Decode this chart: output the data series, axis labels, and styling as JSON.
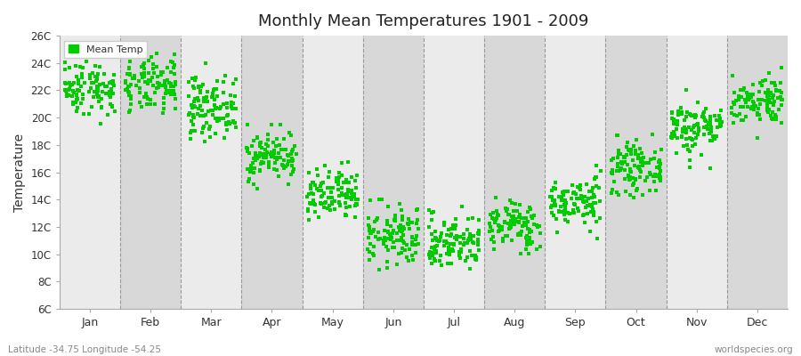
{
  "title": "Monthly Mean Temperatures 1901 - 2009",
  "ylabel": "Temperature",
  "xlabel": "",
  "ytick_labels": [
    "6C",
    "8C",
    "10C",
    "12C",
    "14C",
    "16C",
    "18C",
    "20C",
    "22C",
    "24C",
    "26C"
  ],
  "ytick_values": [
    6,
    8,
    10,
    12,
    14,
    16,
    18,
    20,
    22,
    24,
    26
  ],
  "ylim": [
    6,
    26
  ],
  "months": [
    "Jan",
    "Feb",
    "Mar",
    "Apr",
    "May",
    "Jun",
    "Jul",
    "Aug",
    "Sep",
    "Oct",
    "Nov",
    "Dec"
  ],
  "month_centers": [
    1,
    2,
    3,
    4,
    5,
    6,
    7,
    8,
    9,
    10,
    11,
    12
  ],
  "dot_color": "#00cc00",
  "dot_size": 5,
  "background_color": "#ffffff",
  "plot_bg_light": "#ebebeb",
  "plot_bg_dark": "#d8d8d8",
  "legend_label": "Mean Temp",
  "footer_left": "Latitude -34.75 Longitude -54.25",
  "footer_right": "worldspecies.org",
  "month_means": [
    22.2,
    22.3,
    20.8,
    17.2,
    14.2,
    11.3,
    10.9,
    12.1,
    13.8,
    16.3,
    19.3,
    21.3
  ],
  "month_stds": [
    1.0,
    1.0,
    1.1,
    0.9,
    1.0,
    1.1,
    1.0,
    0.9,
    0.9,
    0.9,
    1.0,
    0.9
  ],
  "month_ranges": [
    [
      19.5,
      25.5
    ],
    [
      19.5,
      25.5
    ],
    [
      17.5,
      24.0
    ],
    [
      14.5,
      19.5
    ],
    [
      10.0,
      17.0
    ],
    [
      7.5,
      14.0
    ],
    [
      7.5,
      14.0
    ],
    [
      9.0,
      15.0
    ],
    [
      10.0,
      16.5
    ],
    [
      13.0,
      19.0
    ],
    [
      15.5,
      22.5
    ],
    [
      18.5,
      24.0
    ]
  ],
  "n_points": 109
}
